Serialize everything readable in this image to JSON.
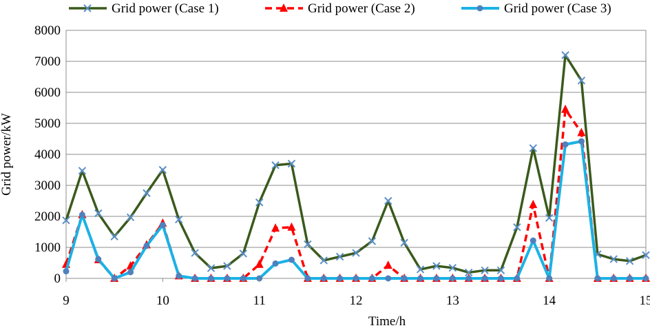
{
  "chart_data": {
    "type": "line",
    "title": "",
    "xlabel": "Time/h",
    "ylabel": "Grid power/kW",
    "xlim": [
      9,
      15
    ],
    "ylim": [
      0,
      8000
    ],
    "x_ticks": [
      "9",
      "10",
      "11",
      "12",
      "13",
      "14",
      "15"
    ],
    "y_ticks": [
      "0",
      "1000",
      "2000",
      "3000",
      "4000",
      "5000",
      "6000",
      "7000",
      "8000"
    ],
    "grid": "horizontal",
    "legend_position": "top",
    "x": [
      9.0,
      9.1667,
      9.3333,
      9.5,
      9.6667,
      9.8333,
      10.0,
      10.1667,
      10.3333,
      10.5,
      10.6667,
      10.8333,
      11.0,
      11.1667,
      11.3333,
      11.5,
      11.6667,
      11.8333,
      12.0,
      12.1667,
      12.3333,
      12.5,
      12.6667,
      12.8333,
      13.0,
      13.1667,
      13.3333,
      13.5,
      13.6667,
      13.8333,
      14.0,
      14.1667,
      14.3333,
      14.5,
      14.6667,
      14.8333,
      15.0
    ],
    "series": [
      {
        "name": "Grid power (Case 1)",
        "color": "#3a5a1c",
        "marker": "x",
        "dash": "solid",
        "values": [
          1870,
          3470,
          2100,
          1350,
          1970,
          2750,
          3500,
          1900,
          820,
          330,
          400,
          800,
          2450,
          3650,
          3700,
          1100,
          580,
          700,
          820,
          1200,
          2500,
          1150,
          290,
          400,
          340,
          190,
          260,
          260,
          1650,
          4200,
          1950,
          7200,
          6380,
          780,
          620,
          560,
          750
        ]
      },
      {
        "name": "Grid power (Case 2)",
        "color": "#ff0000",
        "marker": "triangle",
        "dash": "dashed",
        "values": [
          450,
          2050,
          600,
          0,
          400,
          1080,
          1780,
          80,
          0,
          0,
          0,
          0,
          450,
          1620,
          1650,
          0,
          0,
          0,
          0,
          0,
          420,
          0,
          0,
          0,
          0,
          0,
          0,
          0,
          0,
          2380,
          0,
          5450,
          4700,
          0,
          0,
          0,
          0
        ]
      },
      {
        "name": "Grid power (Case 3)",
        "color": "#1ab2e6",
        "marker": "circle",
        "dash": "solid",
        "values": [
          230,
          2050,
          620,
          0,
          200,
          1050,
          1720,
          80,
          0,
          0,
          0,
          0,
          0,
          480,
          600,
          0,
          0,
          0,
          0,
          0,
          0,
          0,
          0,
          0,
          0,
          0,
          0,
          0,
          0,
          1220,
          0,
          4320,
          4420,
          0,
          0,
          0,
          0
        ]
      }
    ]
  }
}
